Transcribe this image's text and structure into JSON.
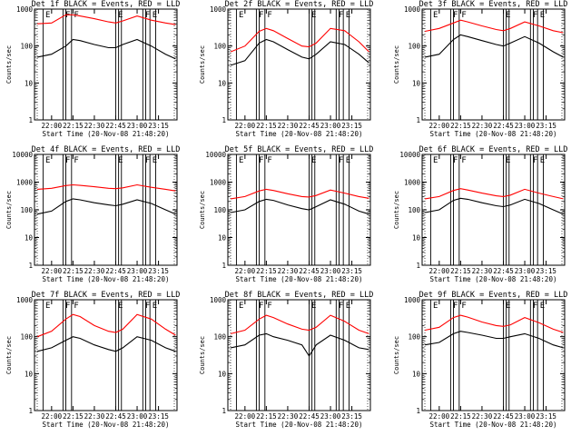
{
  "chart_data": [
    {
      "type": "line",
      "title": "Det 1f BLACK = Events, RED = LLD",
      "xlabel": "Start Time (20-Nov-08 21:48:20)",
      "ylabel": "Counts/sec",
      "yscale": "log",
      "ylim": [
        1,
        1000
      ],
      "xlim": [
        "21:48",
        "23:28"
      ],
      "x_ticks": [
        "22:00",
        "22:15",
        "22:30",
        "22:45",
        "23:00",
        "23:15"
      ],
      "y_ticks": [
        "1",
        "10",
        "100",
        "1000"
      ],
      "flag_labels": [
        "E",
        "F",
        "F",
        "E",
        "F",
        "E"
      ],
      "series": [
        {
          "name": "Events",
          "color": "#000000",
          "x": [
            "21:50",
            "22:00",
            "22:10",
            "22:15",
            "22:20",
            "22:30",
            "22:40",
            "22:45",
            "22:50",
            "23:00",
            "23:10",
            "23:20",
            "23:27"
          ],
          "y": [
            50,
            60,
            100,
            150,
            140,
            110,
            90,
            90,
            110,
            150,
            100,
            60,
            45
          ]
        },
        {
          "name": "LLD",
          "color": "#ff0000",
          "x": [
            "21:50",
            "22:00",
            "22:10",
            "22:15",
            "22:20",
            "22:30",
            "22:40",
            "22:45",
            "22:50",
            "23:00",
            "23:10",
            "23:20",
            "23:27"
          ],
          "y": [
            400,
            420,
            700,
            700,
            650,
            550,
            450,
            420,
            480,
            650,
            500,
            420,
            380
          ]
        }
      ]
    },
    {
      "type": "line",
      "title": "Det 2f BLACK = Events, RED = LLD",
      "xlabel": "Start Time (20-Nov-08 21:48:20)",
      "ylabel": "Counts/sec",
      "yscale": "log",
      "ylim": [
        1,
        1000
      ],
      "xlim": [
        "21:48",
        "23:28"
      ],
      "x_ticks": [
        "22:00",
        "22:15",
        "22:30",
        "22:45",
        "23:00",
        "23:15"
      ],
      "y_ticks": [
        "1",
        "10",
        "100",
        "1000"
      ],
      "flag_labels": [
        "E",
        "F",
        "F",
        "E",
        "F",
        "E"
      ],
      "series": [
        {
          "name": "Events",
          "color": "#000000",
          "x": [
            "21:50",
            "22:00",
            "22:10",
            "22:15",
            "22:20",
            "22:30",
            "22:40",
            "22:45",
            "22:50",
            "23:00",
            "23:10",
            "23:20",
            "23:27"
          ],
          "y": [
            30,
            40,
            120,
            150,
            130,
            80,
            50,
            45,
            60,
            130,
            110,
            60,
            35
          ]
        },
        {
          "name": "LLD",
          "color": "#ff0000",
          "x": [
            "21:50",
            "22:00",
            "22:10",
            "22:15",
            "22:20",
            "22:30",
            "22:40",
            "22:45",
            "22:50",
            "23:00",
            "23:10",
            "23:20",
            "23:27"
          ],
          "y": [
            70,
            100,
            250,
            300,
            260,
            160,
            100,
            95,
            120,
            300,
            260,
            130,
            70
          ]
        }
      ]
    },
    {
      "type": "line",
      "title": "Det 3f BLACK = Events, RED = LLD",
      "xlabel": "Start Time (20-Nov-08 21:48:20)",
      "ylabel": "Counts/sec",
      "yscale": "log",
      "ylim": [
        1,
        1000
      ],
      "xlim": [
        "21:48",
        "23:28"
      ],
      "x_ticks": [
        "22:00",
        "22:15",
        "22:30",
        "22:45",
        "23:00",
        "23:15"
      ],
      "y_ticks": [
        "1",
        "10",
        "100",
        "1000"
      ],
      "flag_labels": [
        "E",
        "F",
        "F",
        "E",
        "F",
        "E"
      ],
      "series": [
        {
          "name": "Events",
          "color": "#000000",
          "x": [
            "21:50",
            "22:00",
            "22:10",
            "22:15",
            "22:20",
            "22:30",
            "22:40",
            "22:45",
            "22:50",
            "23:00",
            "23:10",
            "23:20",
            "23:27"
          ],
          "y": [
            50,
            60,
            150,
            200,
            180,
            140,
            110,
            100,
            120,
            180,
            120,
            70,
            50
          ]
        },
        {
          "name": "LLD",
          "color": "#ff0000",
          "x": [
            "21:50",
            "22:00",
            "22:10",
            "22:15",
            "22:20",
            "22:30",
            "22:40",
            "22:45",
            "22:50",
            "23:00",
            "23:10",
            "23:20",
            "23:27"
          ],
          "y": [
            250,
            300,
            420,
            500,
            450,
            350,
            280,
            260,
            300,
            450,
            350,
            260,
            230
          ]
        }
      ]
    },
    {
      "type": "line",
      "title": "Det 4f BLACK = Events, RED = LLD",
      "xlabel": "Start Time (20-Nov-08 21:48:20)",
      "ylabel": "Counts/sec",
      "yscale": "log",
      "ylim": [
        1,
        10000
      ],
      "xlim": [
        "21:48",
        "23:28"
      ],
      "x_ticks": [
        "22:00",
        "22:15",
        "22:30",
        "22:45",
        "23:00",
        "23:15"
      ],
      "y_ticks": [
        "1",
        "10",
        "100",
        "1000",
        "10000"
      ],
      "flag_labels": [
        "E",
        "F",
        "F",
        "E",
        "F",
        "E"
      ],
      "series": [
        {
          "name": "Events",
          "color": "#000000",
          "x": [
            "21:50",
            "22:00",
            "22:10",
            "22:15",
            "22:20",
            "22:30",
            "22:40",
            "22:45",
            "22:50",
            "23:00",
            "23:10",
            "23:20",
            "23:27"
          ],
          "y": [
            70,
            90,
            200,
            250,
            230,
            180,
            150,
            140,
            160,
            230,
            170,
            100,
            70
          ]
        },
        {
          "name": "LLD",
          "color": "#ff0000",
          "x": [
            "21:50",
            "22:00",
            "22:10",
            "22:15",
            "22:20",
            "22:30",
            "22:40",
            "22:45",
            "22:50",
            "23:00",
            "23:10",
            "23:20",
            "23:27"
          ],
          "y": [
            550,
            600,
            750,
            800,
            760,
            680,
            600,
            580,
            620,
            800,
            650,
            550,
            480
          ]
        }
      ]
    },
    {
      "type": "line",
      "title": "Det 5f BLACK = Events, RED = LLD",
      "xlabel": "Start Time (20-Nov-08 21:48:20)",
      "ylabel": "Counts/sec",
      "yscale": "log",
      "ylim": [
        1,
        10000
      ],
      "xlim": [
        "21:48",
        "23:28"
      ],
      "x_ticks": [
        "22:00",
        "22:15",
        "22:30",
        "22:45",
        "23:00",
        "23:15"
      ],
      "y_ticks": [
        "1",
        "10",
        "100",
        "1000",
        "10000"
      ],
      "flag_labels": [
        "E",
        "F",
        "F",
        "E",
        "F",
        "E"
      ],
      "series": [
        {
          "name": "Events",
          "color": "#000000",
          "x": [
            "21:50",
            "22:00",
            "22:10",
            "22:15",
            "22:20",
            "22:30",
            "22:40",
            "22:45",
            "22:50",
            "23:00",
            "23:10",
            "23:20",
            "23:27"
          ],
          "y": [
            80,
            100,
            200,
            240,
            220,
            150,
            110,
            100,
            130,
            230,
            160,
            90,
            70
          ]
        },
        {
          "name": "LLD",
          "color": "#ff0000",
          "x": [
            "21:50",
            "22:00",
            "22:10",
            "22:15",
            "22:20",
            "22:30",
            "22:40",
            "22:45",
            "22:50",
            "23:00",
            "23:10",
            "23:20",
            "23:27"
          ],
          "y": [
            250,
            300,
            480,
            550,
            500,
            380,
            300,
            290,
            330,
            520,
            400,
            300,
            260
          ]
        }
      ]
    },
    {
      "type": "line",
      "title": "Det 6f BLACK = Events, RED = LLD",
      "xlabel": "Start Time (20-Nov-08 21:48:20)",
      "ylabel": "Counts/sec",
      "yscale": "log",
      "ylim": [
        1,
        10000
      ],
      "xlim": [
        "21:48",
        "23:28"
      ],
      "x_ticks": [
        "22:00",
        "22:15",
        "22:30",
        "22:45",
        "23:00",
        "23:15"
      ],
      "y_ticks": [
        "1",
        "10",
        "100",
        "1000",
        "10000"
      ],
      "flag_labels": [
        "E",
        "F",
        "F",
        "E",
        "F",
        "E"
      ],
      "series": [
        {
          "name": "Events",
          "color": "#000000",
          "x": [
            "21:50",
            "22:00",
            "22:10",
            "22:15",
            "22:20",
            "22:30",
            "22:40",
            "22:45",
            "22:50",
            "23:00",
            "23:10",
            "23:20",
            "23:27"
          ],
          "y": [
            80,
            100,
            220,
            260,
            240,
            180,
            140,
            130,
            150,
            240,
            170,
            100,
            70
          ]
        },
        {
          "name": "LLD",
          "color": "#ff0000",
          "x": [
            "21:50",
            "22:00",
            "22:10",
            "22:15",
            "22:20",
            "22:30",
            "22:40",
            "22:45",
            "22:50",
            "23:00",
            "23:10",
            "23:20",
            "23:27"
          ],
          "y": [
            250,
            300,
            500,
            580,
            520,
            400,
            320,
            300,
            340,
            550,
            400,
            300,
            250
          ]
        }
      ]
    },
    {
      "type": "line",
      "title": "Det 7f BLACK = Events, RED = LLD",
      "xlabel": "Start Time (20-Nov-08 21:48:20)",
      "ylabel": "Counts/sec",
      "yscale": "log",
      "ylim": [
        1,
        1000
      ],
      "xlim": [
        "21:48",
        "23:28"
      ],
      "x_ticks": [
        "22:00",
        "22:15",
        "22:30",
        "22:45",
        "23:00",
        "23:15"
      ],
      "y_ticks": [
        "1",
        "10",
        "100",
        "1000"
      ],
      "flag_labels": [
        "E",
        "F",
        "F",
        "E",
        "F",
        "E"
      ],
      "series": [
        {
          "name": "Events",
          "color": "#000000",
          "x": [
            "21:50",
            "22:00",
            "22:10",
            "22:15",
            "22:20",
            "22:30",
            "22:40",
            "22:45",
            "22:50",
            "23:00",
            "23:10",
            "23:20",
            "23:27"
          ],
          "y": [
            40,
            50,
            80,
            100,
            90,
            60,
            45,
            40,
            50,
            100,
            80,
            50,
            40
          ]
        },
        {
          "name": "LLD",
          "color": "#ff0000",
          "x": [
            "21:50",
            "22:00",
            "22:10",
            "22:15",
            "22:20",
            "22:30",
            "22:40",
            "22:45",
            "22:50",
            "23:00",
            "23:10",
            "23:20",
            "23:27"
          ],
          "y": [
            100,
            140,
            300,
            400,
            350,
            200,
            140,
            130,
            160,
            400,
            300,
            160,
            110
          ]
        }
      ]
    },
    {
      "type": "line",
      "title": "Det 8f BLACK = Events, RED = LLD",
      "xlabel": "Start Time (20-Nov-08 21:48:20)",
      "ylabel": "Counts/sec",
      "yscale": "log",
      "ylim": [
        1,
        1000
      ],
      "xlim": [
        "21:48",
        "23:28"
      ],
      "x_ticks": [
        "22:00",
        "22:15",
        "22:30",
        "22:45",
        "23:00",
        "23:15"
      ],
      "y_ticks": [
        "1",
        "10",
        "100",
        "1000"
      ],
      "flag_labels": [
        "E",
        "F",
        "F",
        "E",
        "F",
        "E"
      ],
      "series": [
        {
          "name": "Events",
          "color": "#000000",
          "x": [
            "21:50",
            "22:00",
            "22:10",
            "22:15",
            "22:20",
            "22:30",
            "22:40",
            "22:45",
            "22:50",
            "23:00",
            "23:10",
            "23:20",
            "23:27"
          ],
          "y": [
            50,
            60,
            110,
            120,
            100,
            80,
            60,
            30,
            60,
            110,
            80,
            50,
            45
          ]
        },
        {
          "name": "LLD",
          "color": "#ff0000",
          "x": [
            "21:50",
            "22:00",
            "22:10",
            "22:15",
            "22:20",
            "22:30",
            "22:40",
            "22:45",
            "22:50",
            "23:00",
            "23:10",
            "23:20",
            "23:27"
          ],
          "y": [
            120,
            150,
            300,
            380,
            330,
            220,
            160,
            150,
            180,
            380,
            260,
            150,
            120
          ]
        }
      ]
    },
    {
      "type": "line",
      "title": "Det 9f BLACK = Events, RED = LLD",
      "xlabel": "Start Time (20-Nov-08 21:48:20)",
      "ylabel": "Counts/sec",
      "yscale": "log",
      "ylim": [
        1,
        1000
      ],
      "xlim": [
        "21:48",
        "23:28"
      ],
      "x_ticks": [
        "22:00",
        "22:15",
        "22:30",
        "22:45",
        "23:00",
        "23:15"
      ],
      "y_ticks": [
        "1",
        "10",
        "100",
        "1000"
      ],
      "flag_labels": [
        "E",
        "F",
        "F",
        "E",
        "F",
        "E"
      ],
      "series": [
        {
          "name": "Events",
          "color": "#000000",
          "x": [
            "21:50",
            "22:00",
            "22:10",
            "22:15",
            "22:20",
            "22:30",
            "22:40",
            "22:45",
            "22:50",
            "23:00",
            "23:10",
            "23:20",
            "23:27"
          ],
          "y": [
            60,
            70,
            120,
            140,
            130,
            110,
            90,
            90,
            100,
            120,
            90,
            60,
            50
          ]
        },
        {
          "name": "LLD",
          "color": "#ff0000",
          "x": [
            "21:50",
            "22:00",
            "22:10",
            "22:15",
            "22:20",
            "22:30",
            "22:40",
            "22:45",
            "22:50",
            "23:00",
            "23:10",
            "23:20",
            "23:27"
          ],
          "y": [
            150,
            180,
            330,
            380,
            340,
            250,
            200,
            190,
            210,
            330,
            240,
            160,
            130
          ]
        }
      ]
    }
  ]
}
